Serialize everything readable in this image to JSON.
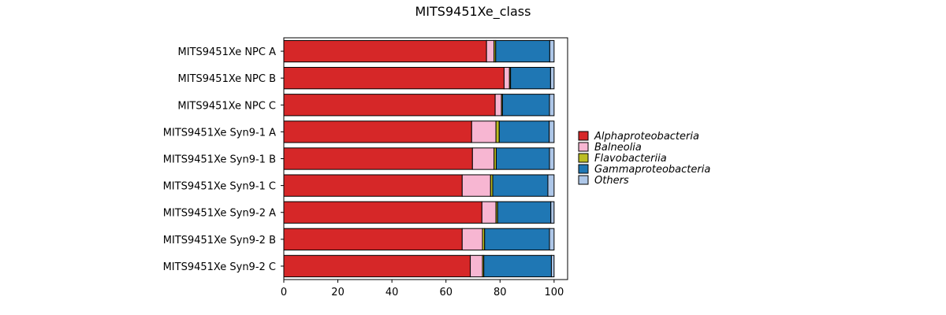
{
  "chart_data": {
    "type": "bar",
    "orientation": "horizontal",
    "stacked": true,
    "title": "MITS9451Xe_class",
    "xlabel": "",
    "ylabel": "",
    "xlim": [
      0,
      105
    ],
    "xticks": [
      0,
      20,
      40,
      60,
      80,
      100
    ],
    "grid": false,
    "legend_position": "right",
    "categories": [
      "MITS9451Xe NPC A",
      "MITS9451Xe NPC B",
      "MITS9451Xe NPC C",
      "MITS9451Xe Syn9-1 A",
      "MITS9451Xe Syn9-1 B",
      "MITS9451Xe Syn9-1 C",
      "MITS9451Xe Syn9-2 A",
      "MITS9451Xe Syn9-2 B",
      "MITS9451Xe Syn9-2 C"
    ],
    "series": [
      {
        "name": "Alphaproteobacteria",
        "color": "#d62728",
        "values": [
          75.0,
          81.5,
          78.2,
          69.5,
          69.8,
          66.0,
          73.3,
          66.0,
          69.0
        ]
      },
      {
        "name": "Balneolia",
        "color": "#f7b6d2",
        "values": [
          2.8,
          2.0,
          2.3,
          9.0,
          8.0,
          10.5,
          5.2,
          7.5,
          4.5
        ]
      },
      {
        "name": "Flavobacteriia",
        "color": "#bcbd22",
        "values": [
          0.6,
          0.4,
          0.4,
          1.2,
          0.8,
          0.8,
          0.6,
          0.8,
          0.5
        ]
      },
      {
        "name": "Gammaproteobacteria",
        "color": "#1f77b4",
        "values": [
          20.0,
          14.8,
          17.4,
          18.5,
          19.7,
          20.4,
          19.7,
          24.0,
          25.0
        ]
      },
      {
        "name": "Others",
        "color": "#aec7e8",
        "values": [
          1.6,
          1.3,
          1.7,
          1.8,
          1.7,
          2.3,
          1.2,
          1.7,
          1.0
        ]
      }
    ]
  }
}
